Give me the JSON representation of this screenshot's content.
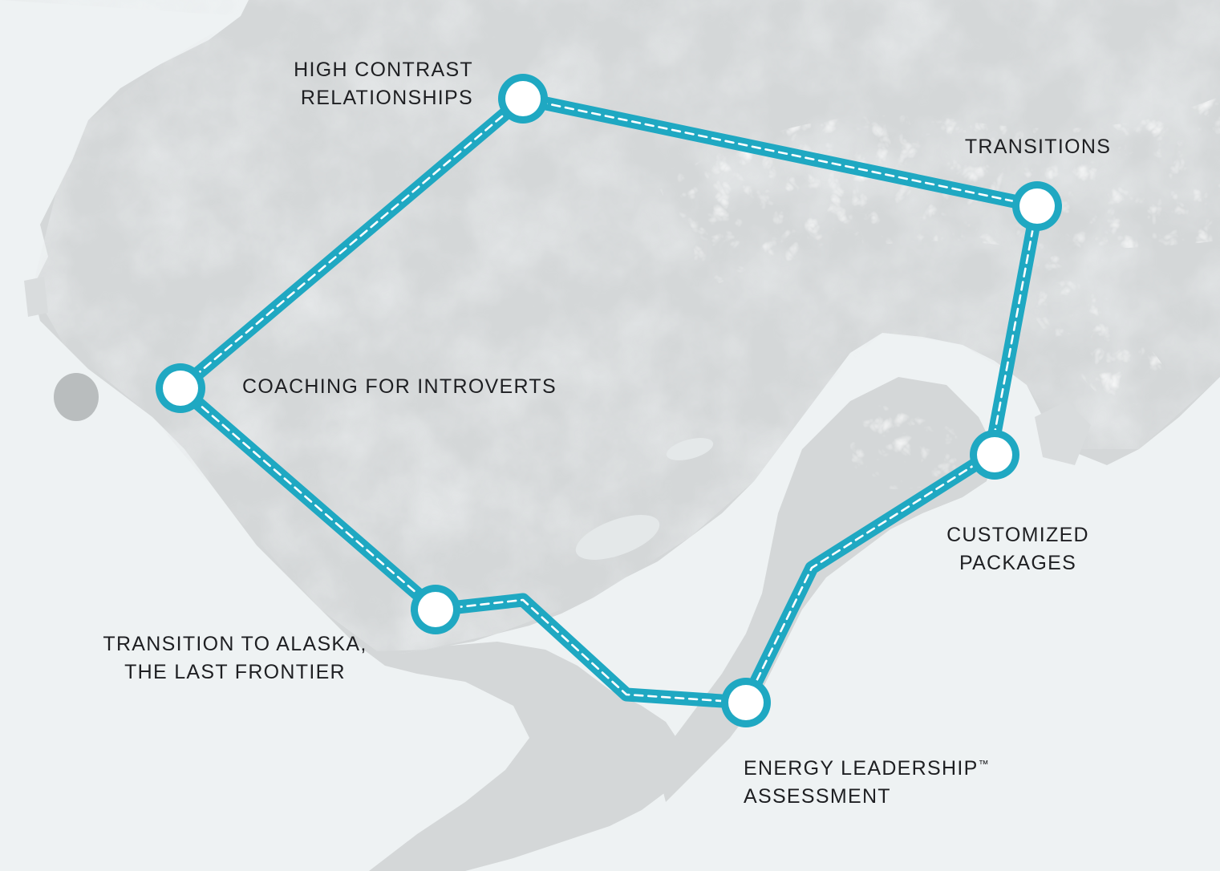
{
  "map": {
    "colors": {
      "water": "#eef2f3",
      "land": "#d4d7d8",
      "terrain_dark": "#c2c6c7",
      "snow": "#f3f5f5",
      "route": "#1fa8c2",
      "route_dash": "#ffffff",
      "node_fill": "#ffffff",
      "label_text": "#1e1f22"
    },
    "stops": [
      {
        "id": "high-contrast",
        "lines": [
          "HIGH CONTRAST",
          "RELATIONSHIPS"
        ]
      },
      {
        "id": "transitions",
        "lines": [
          "TRANSITIONS"
        ]
      },
      {
        "id": "coaching",
        "lines": [
          "COACHING FOR INTROVERTS"
        ]
      },
      {
        "id": "customized",
        "lines": [
          "CUSTOMIZED",
          "PACKAGES"
        ]
      },
      {
        "id": "alaska",
        "lines": [
          "TRANSITION TO ALASKA,",
          "THE LAST FRONTIER"
        ]
      },
      {
        "id": "energy",
        "lines": [
          "ENERGY LEADERSHIP",
          "ASSESSMENT"
        ],
        "mark": "™"
      }
    ]
  }
}
